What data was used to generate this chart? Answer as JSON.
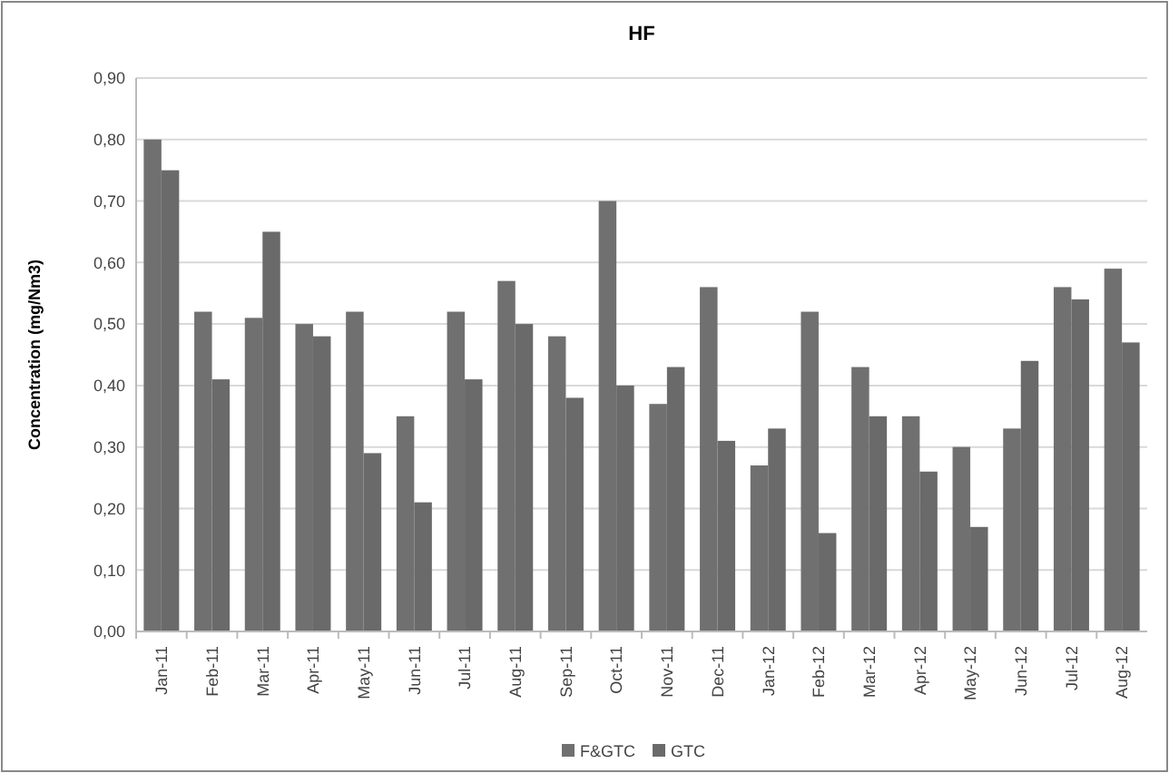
{
  "chart_data": {
    "type": "bar",
    "title": "HF",
    "ylabel": "Concentration (mg/Nm3)",
    "categories": [
      "Jan-11",
      "Feb-11",
      "Mar-11",
      "Apr-11",
      "May-11",
      "Jun-11",
      "Jul-11",
      "Aug-11",
      "Sep-11",
      "Oct-11",
      "Nov-11",
      "Dec-11",
      "Jan-12",
      "Feb-12",
      "Mar-12",
      "Apr-12",
      "May-12",
      "Jun-12",
      "Jul-12",
      "Aug-12"
    ],
    "series": [
      {
        "name": "F&GTC",
        "color": "#707070",
        "values": [
          0.8,
          0.52,
          0.51,
          0.5,
          0.52,
          0.35,
          0.52,
          0.57,
          0.48,
          0.7,
          0.37,
          0.56,
          0.27,
          0.52,
          0.43,
          0.35,
          0.3,
          0.33,
          0.56,
          0.59
        ]
      },
      {
        "name": "GTC",
        "color": "#6a6a6a",
        "values": [
          0.75,
          0.41,
          0.65,
          0.48,
          0.29,
          0.21,
          0.41,
          0.5,
          0.38,
          0.4,
          0.43,
          0.31,
          0.33,
          0.16,
          0.35,
          0.26,
          0.17,
          0.44,
          0.54,
          0.47
        ]
      }
    ],
    "ylim": [
      0,
      0.9
    ],
    "yticks": [
      {
        "value": 0,
        "label": "0,00"
      },
      {
        "value": 0.1,
        "label": "0,10"
      },
      {
        "value": 0.2,
        "label": "0,20"
      },
      {
        "value": 0.3,
        "label": "0,30"
      },
      {
        "value": 0.4,
        "label": "0,40"
      },
      {
        "value": 0.5,
        "label": "0,50"
      },
      {
        "value": 0.6,
        "label": "0,60"
      },
      {
        "value": 0.7,
        "label": "0,70"
      },
      {
        "value": 0.8,
        "label": "0,80"
      },
      {
        "value": 0.9,
        "label": "0,90"
      }
    ],
    "grid": "y",
    "legend": "bottom"
  }
}
